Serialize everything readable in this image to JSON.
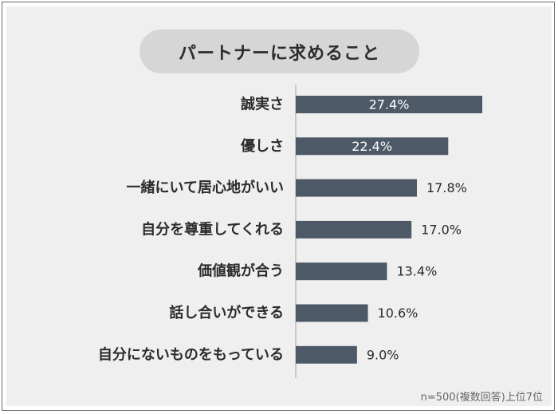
{
  "chart_data": {
    "type": "bar",
    "orientation": "horizontal",
    "title": "パートナーに求めること",
    "categories": [
      "誠実さ",
      "優しさ",
      "一緒にいて居心地がいい",
      "自分を尊重してくれる",
      "価値観が合う",
      "話し合いができる",
      "自分にないものをもっている"
    ],
    "values": [
      27.4,
      22.4,
      17.8,
      17.0,
      13.4,
      10.6,
      9.0
    ],
    "value_labels": [
      "27.4%",
      "22.4%",
      "17.8%",
      "17.0%",
      "13.4%",
      "10.6%",
      "9.0%"
    ],
    "xlim": [
      0,
      30
    ],
    "bar_color": "#4d5967",
    "note": "n=500(複数回答)上位7位"
  }
}
